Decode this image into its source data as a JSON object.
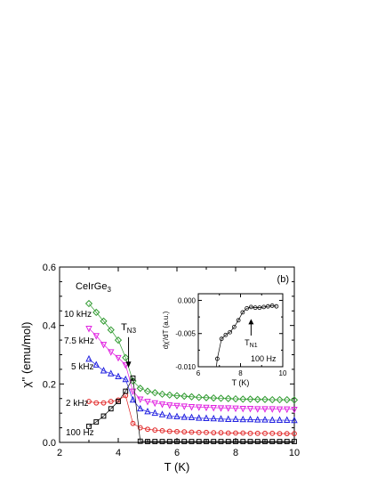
{
  "chart_data": {
    "type": "scatter",
    "panel_label": "(b)",
    "compound": {
      "base": "CeIrGe",
      "subscript": "3"
    },
    "xlabel": "T (K)",
    "ylabel": "χ'' (emu/mol)",
    "xlim": [
      2,
      10
    ],
    "ylim": [
      0,
      0.6
    ],
    "xticks": [
      "2",
      "4",
      "6",
      "8",
      "10"
    ],
    "yticks": [
      "0.0",
      "0.2",
      "0.4",
      "0.6"
    ],
    "annotation": {
      "base": "T",
      "subscript": "N3",
      "x": 4.35,
      "y_from": 0.36,
      "y_to": 0.255
    },
    "series": [
      {
        "name": "10 kHz",
        "color": "#2f9a2f",
        "marker": "diamond",
        "x": [
          3.0,
          3.25,
          3.5,
          3.75,
          4.0,
          4.25,
          4.5,
          4.75,
          5.0,
          5.25,
          5.5,
          5.75,
          6.0,
          6.25,
          6.5,
          6.75,
          7.0,
          7.25,
          7.5,
          7.75,
          8.0,
          8.25,
          8.5,
          8.75,
          9.0,
          9.25,
          9.5,
          9.75,
          10.0
        ],
        "y": [
          0.475,
          0.445,
          0.415,
          0.385,
          0.35,
          0.29,
          0.21,
          0.185,
          0.175,
          0.17,
          0.165,
          0.162,
          0.16,
          0.158,
          0.156,
          0.154,
          0.153,
          0.152,
          0.151,
          0.15,
          0.149,
          0.148,
          0.148,
          0.147,
          0.147,
          0.146,
          0.146,
          0.146,
          0.145
        ]
      },
      {
        "name": "7.5 kHz",
        "color": "#e020e0",
        "marker": "triangle-down",
        "x": [
          3.0,
          3.25,
          3.5,
          3.75,
          4.0,
          4.25,
          4.5,
          4.75,
          5.0,
          5.25,
          5.5,
          5.75,
          6.0,
          6.25,
          6.5,
          6.75,
          7.0,
          7.25,
          7.5,
          7.75,
          8.0,
          8.25,
          8.5,
          8.75,
          9.0,
          9.25,
          9.5,
          9.75,
          10.0
        ],
        "y": [
          0.39,
          0.365,
          0.335,
          0.31,
          0.29,
          0.265,
          0.175,
          0.148,
          0.14,
          0.135,
          0.131,
          0.128,
          0.126,
          0.124,
          0.122,
          0.121,
          0.12,
          0.119,
          0.118,
          0.118,
          0.117,
          0.116,
          0.116,
          0.115,
          0.115,
          0.115,
          0.114,
          0.114,
          0.113
        ]
      },
      {
        "name": "5 kHz",
        "color": "#2020e0",
        "marker": "triangle-up",
        "x": [
          3.0,
          3.25,
          3.5,
          3.75,
          4.0,
          4.25,
          4.5,
          4.75,
          5.0,
          5.25,
          5.5,
          5.75,
          6.0,
          6.25,
          6.5,
          6.75,
          7.0,
          7.25,
          7.5,
          7.75,
          8.0,
          8.25,
          8.5,
          8.75,
          9.0,
          9.25,
          9.5,
          9.75,
          10.0
        ],
        "y": [
          0.285,
          0.265,
          0.245,
          0.235,
          0.225,
          0.215,
          0.145,
          0.115,
          0.105,
          0.1,
          0.095,
          0.09,
          0.088,
          0.086,
          0.085,
          0.083,
          0.082,
          0.081,
          0.08,
          0.079,
          0.079,
          0.078,
          0.078,
          0.077,
          0.077,
          0.076,
          0.076,
          0.076,
          0.075
        ]
      },
      {
        "name": "2 kHz",
        "color": "#e02020",
        "marker": "circle",
        "x": [
          3.0,
          3.25,
          3.5,
          3.75,
          4.0,
          4.25,
          4.5,
          4.75,
          5.0,
          5.25,
          5.5,
          5.75,
          6.0,
          6.25,
          6.5,
          6.75,
          7.0,
          7.25,
          7.5,
          7.75,
          8.0,
          8.25,
          8.5,
          8.75,
          9.0,
          9.25,
          9.5,
          9.75,
          10.0
        ],
        "y": [
          0.14,
          0.135,
          0.135,
          0.14,
          0.145,
          0.16,
          0.065,
          0.05,
          0.045,
          0.042,
          0.04,
          0.038,
          0.037,
          0.036,
          0.035,
          0.034,
          0.034,
          0.033,
          0.033,
          0.032,
          0.032,
          0.032,
          0.031,
          0.031,
          0.031,
          0.031,
          0.03,
          0.03,
          0.03
        ]
      },
      {
        "name": "100 Hz",
        "color": "#000000",
        "marker": "square",
        "x": [
          3.0,
          3.25,
          3.5,
          3.75,
          4.0,
          4.25,
          4.5,
          4.75,
          5.0,
          5.25,
          5.5,
          5.75,
          6.0,
          6.25,
          6.5,
          6.75,
          7.0,
          7.25,
          7.5,
          7.75,
          8.0,
          8.25,
          8.5,
          8.75,
          9.0,
          9.25,
          9.5,
          9.75,
          10.0
        ],
        "y": [
          0.055,
          0.07,
          0.09,
          0.115,
          0.14,
          0.175,
          0.22,
          0.004,
          0.003,
          0.003,
          0.003,
          0.003,
          0.003,
          0.003,
          0.003,
          0.003,
          0.003,
          0.003,
          0.003,
          0.003,
          0.003,
          0.003,
          0.003,
          0.003,
          0.003,
          0.003,
          0.003,
          0.003,
          0.003
        ]
      }
    ],
    "inset": {
      "type": "scatter",
      "xlabel": "T (K)",
      "ylabel": "dχ'/dT (a.u.)",
      "xlim": [
        6,
        10
      ],
      "ylim": [
        -0.01,
        0.001
      ],
      "xticks": [
        "6",
        "8",
        "10"
      ],
      "yticks": [
        "0.000",
        "-0.005",
        "-0.010"
      ],
      "series_label": "100 Hz",
      "annotation": {
        "base": "T",
        "subscript": "N1",
        "x": 8.5,
        "y_from": -0.0053,
        "y_to": -0.0028
      },
      "x": [
        6.9,
        7.1,
        7.3,
        7.5,
        7.7,
        7.9,
        8.1,
        8.3,
        8.5,
        8.7,
        8.9,
        9.1,
        9.3,
        9.5,
        9.7
      ],
      "y": [
        -0.0088,
        -0.0058,
        -0.0052,
        -0.0048,
        -0.004,
        -0.003,
        -0.0018,
        -0.0012,
        -0.001,
        -0.0011,
        -0.0011,
        -0.001,
        -0.0009,
        -0.0008,
        -0.0009
      ]
    }
  }
}
